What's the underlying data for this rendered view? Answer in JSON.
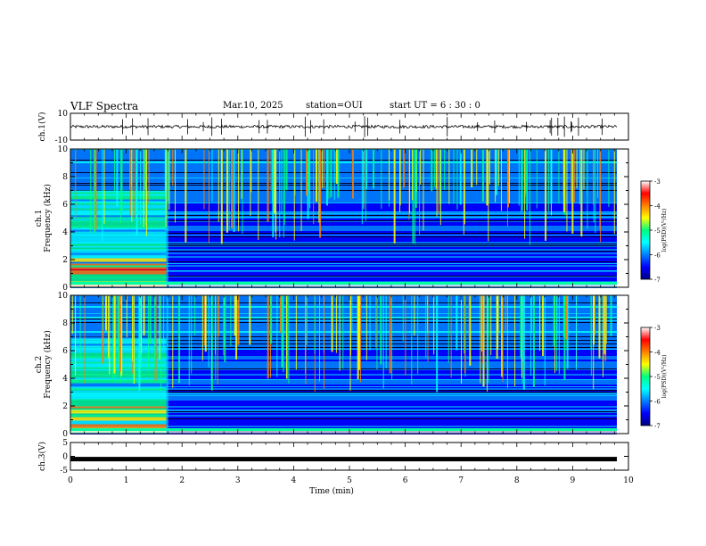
{
  "header": {
    "title": "VLF Spectra",
    "date": "Mar.10, 2025",
    "station": "station=OUI",
    "start": "start  UT =   6  : 30 : 0"
  },
  "chart_data": [
    {
      "type": "line",
      "panel": "ch1-waveform",
      "ylabel": "ch.1(V)",
      "ylim": [
        -10,
        10
      ],
      "yticks": [
        "10",
        "-10"
      ],
      "baseline": 0
    },
    {
      "type": "heatmap",
      "panel": "ch1-spectrogram",
      "ylabel": "ch.1\nFrequency (kHz)",
      "ylim": [
        0,
        10
      ],
      "yticks": [
        "0",
        "2",
        "4",
        "6",
        "8",
        "10"
      ],
      "colorbar": {
        "label": "log(PSD)(V²/Hz)",
        "range": [
          -7,
          -3
        ],
        "ticks": [
          "-3",
          "-4",
          "-5",
          "-6",
          "-7"
        ]
      }
    },
    {
      "type": "heatmap",
      "panel": "ch2-spectrogram",
      "ylabel": "ch.2\nFrequency (kHz)",
      "ylim": [
        0,
        10
      ],
      "yticks": [
        "0",
        "2",
        "4",
        "6",
        "8",
        "10"
      ],
      "colorbar": {
        "label": "log(PSD)(V²/Hz)",
        "range": [
          -7,
          -3
        ],
        "ticks": [
          "-3",
          "-4",
          "-5",
          "-6",
          "-7"
        ]
      }
    },
    {
      "type": "line",
      "panel": "ch3-waveform",
      "ylabel": "ch.3(V)",
      "ylim": [
        -5,
        5
      ],
      "yticks": [
        "5",
        "0",
        "-5"
      ],
      "baseline": -1
    }
  ],
  "x_axis": {
    "label": "Time  (min)",
    "xlim": [
      0,
      10
    ],
    "ticks": [
      "0",
      "1",
      "2",
      "3",
      "4",
      "5",
      "6",
      "7",
      "8",
      "9",
      "10"
    ]
  },
  "colors": {
    "colormap": [
      "#000080",
      "#0000ff",
      "#0080ff",
      "#00ffff",
      "#00ff80",
      "#ffff00",
      "#ff8000",
      "#ff0000",
      "#ffffff"
    ]
  }
}
